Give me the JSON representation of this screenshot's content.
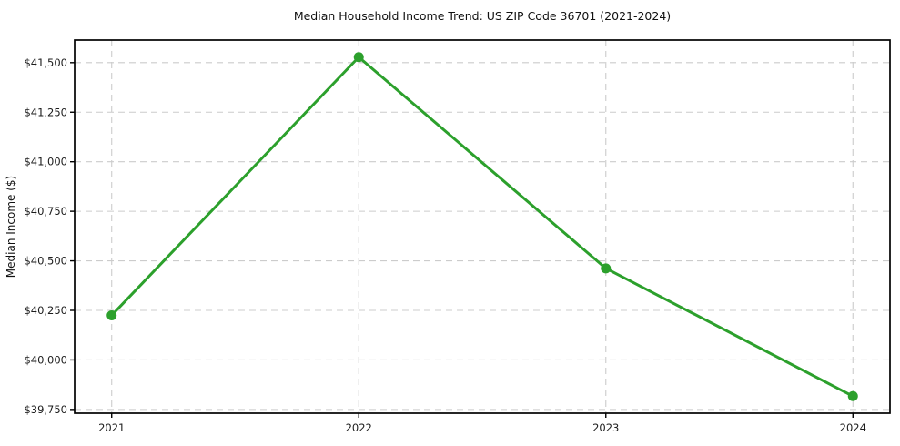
{
  "chart_data": {
    "type": "line",
    "title": "Median Household Income Trend: US ZIP Code 36701 (2021-2024)",
    "ylabel": "Median Income ($)",
    "xlabel": "",
    "x": [
      2021,
      2022,
      2023,
      2024
    ],
    "x_tick_labels": [
      "2021",
      "2022",
      "2023",
      "2024"
    ],
    "values": [
      40225,
      41528,
      40462,
      39817
    ],
    "value_labels": [
      "$40,225",
      "$41,528",
      "$40,462",
      "$39,817"
    ],
    "yticks": [
      39750,
      40000,
      40250,
      40500,
      40750,
      41000,
      41250,
      41500
    ],
    "ytick_labels": [
      "$39,750",
      "$40,000",
      "$40,250",
      "$40,500",
      "$40,750",
      "$41,000",
      "$41,250",
      "$41,500"
    ],
    "ylim": [
      39731,
      41614
    ],
    "xlim": [
      2020.85,
      2024.15
    ],
    "grid": true,
    "grid_style": "dashed",
    "legend": false,
    "line_color": "#2ca02c",
    "marker": "circle",
    "marker_color": "#2ca02c",
    "grid_color": "#cccccc",
    "background_color": "#ffffff"
  }
}
